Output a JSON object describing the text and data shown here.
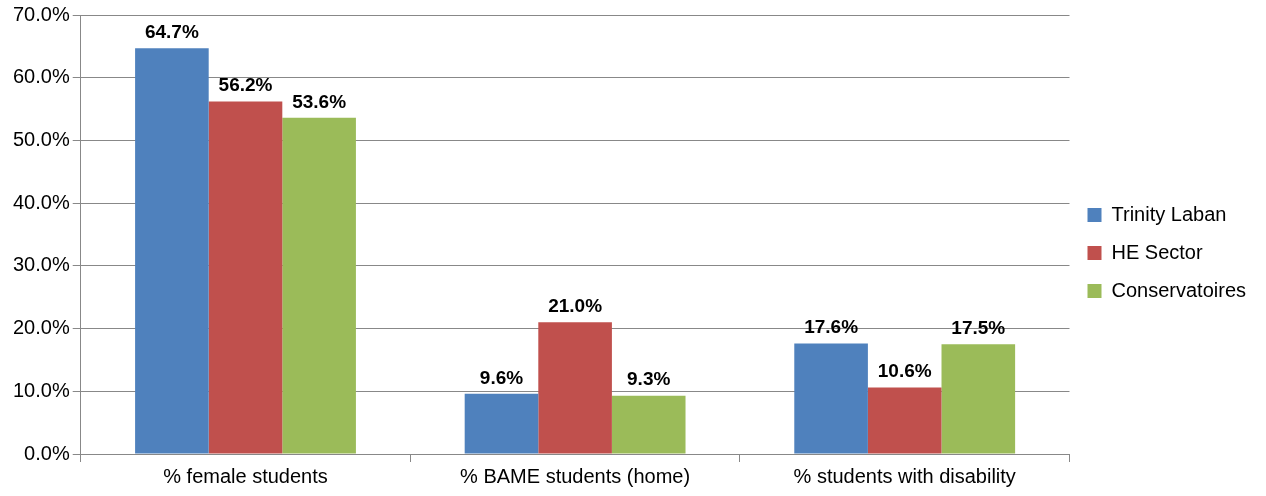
{
  "chart_data": {
    "type": "bar",
    "categories": [
      "% female students",
      "% BAME students (home)",
      "% students with disability"
    ],
    "series": [
      {
        "name": "Trinity Laban",
        "color": "#4f81bd",
        "values": [
          64.7,
          9.6,
          17.6
        ],
        "value_labels": [
          "64.7%",
          "9.6%",
          "17.6%"
        ]
      },
      {
        "name": "HE Sector",
        "color": "#c0504d",
        "values": [
          56.2,
          21.0,
          10.6
        ],
        "value_labels": [
          "56.2%",
          "21.0%",
          "10.6%"
        ]
      },
      {
        "name": "Conservatoires",
        "color": "#9bbb59",
        "values": [
          53.6,
          9.3,
          17.5
        ],
        "value_labels": [
          "53.6%",
          "9.3%",
          "17.5%"
        ]
      }
    ],
    "ylim": [
      0,
      70
    ],
    "yticks": [
      {
        "value": 0,
        "label": "0.0%"
      },
      {
        "value": 10,
        "label": "10.0%"
      },
      {
        "value": 20,
        "label": "20.0%"
      },
      {
        "value": 30,
        "label": "30.0%"
      },
      {
        "value": 40,
        "label": "40.0%"
      },
      {
        "value": 50,
        "label": "50.0%"
      },
      {
        "value": 60,
        "label": "60.0%"
      },
      {
        "value": 70,
        "label": "70.0%"
      }
    ],
    "grid": "y",
    "legend": "right"
  }
}
